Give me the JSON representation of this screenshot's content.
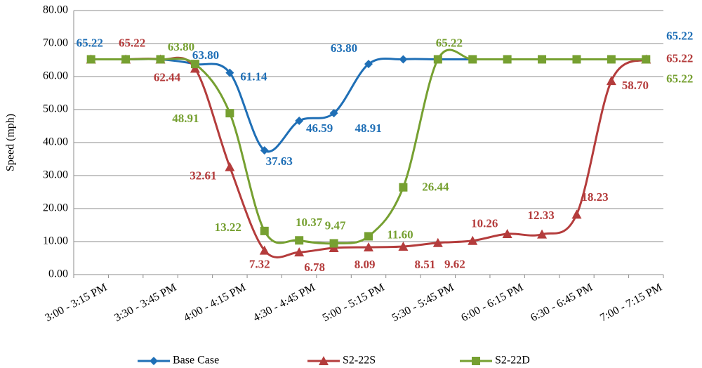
{
  "chart_data": {
    "type": "line",
    "y_label": "Speed (mph)",
    "categories": [
      "3:00 - 3:15 PM",
      null,
      "3:30 - 3:45 PM",
      null,
      "4:00 - 4:15 PM",
      null,
      "4:30 - 4:45 PM",
      null,
      "5:00 - 5:15 PM",
      null,
      "5:30 - 5:45 PM",
      null,
      "6:00 - 6:15 PM",
      null,
      "6:30 - 6:45 PM",
      null,
      "7:00 - 7:15 PM"
    ],
    "ylim": [
      0,
      80
    ],
    "yticks": [
      {
        "value": 0,
        "label": "0.00"
      },
      {
        "value": 10,
        "label": "10.00"
      },
      {
        "value": 20,
        "label": "20.00"
      },
      {
        "value": 30,
        "label": "30.00"
      },
      {
        "value": 40,
        "label": "40.00"
      },
      {
        "value": 50,
        "label": "50.00"
      },
      {
        "value": 60,
        "label": "60.00"
      },
      {
        "value": 70,
        "label": "70.00"
      },
      {
        "value": 80,
        "label": "80.00"
      }
    ],
    "grid": true,
    "legend": "bottom",
    "series": [
      {
        "name": "Base Case",
        "color": "#1f6fb6",
        "marker": "diamond",
        "values": [
          65.22,
          65.22,
          65.22,
          63.8,
          61.14,
          37.63,
          46.59,
          48.91,
          63.8,
          65.22,
          65.22,
          65.22,
          65.22,
          65.22,
          65.22,
          65.22,
          65.22
        ],
        "value_labels": [
          "65.22",
          null,
          null,
          "63.80",
          "61.14",
          "37.63",
          "46.59",
          "48.91",
          "63.80",
          null,
          null,
          null,
          null,
          null,
          null,
          null,
          "65.22"
        ]
      },
      {
        "name": "S2-22S",
        "color": "#b43c3c",
        "marker": "triangle",
        "values": [
          65.22,
          65.22,
          65.22,
          62.44,
          32.61,
          7.32,
          6.78,
          8.09,
          8.3,
          8.51,
          9.62,
          10.26,
          12.33,
          12.2,
          18.23,
          58.7,
          65.22
        ],
        "value_labels": [
          null,
          "65.22",
          null,
          "62.44",
          "32.61",
          "7.32",
          "6.78",
          "8.09",
          null,
          "8.51",
          "9.62",
          "10.26",
          "12.33",
          null,
          "18.23",
          "58.70",
          "65.22"
        ]
      },
      {
        "name": "S2-22D",
        "color": "#76a031",
        "marker": "square",
        "values": [
          65.22,
          65.22,
          65.22,
          63.8,
          48.91,
          13.22,
          10.37,
          9.47,
          11.6,
          26.44,
          65.22,
          65.22,
          65.22,
          65.22,
          65.22,
          65.22,
          65.22
        ],
        "value_labels": [
          null,
          null,
          null,
          "63.80",
          "48.91",
          "13.22",
          "10.37",
          "9.47",
          "11.60",
          "26.44",
          "65.22",
          null,
          null,
          null,
          null,
          null,
          "65.22"
        ]
      }
    ]
  }
}
